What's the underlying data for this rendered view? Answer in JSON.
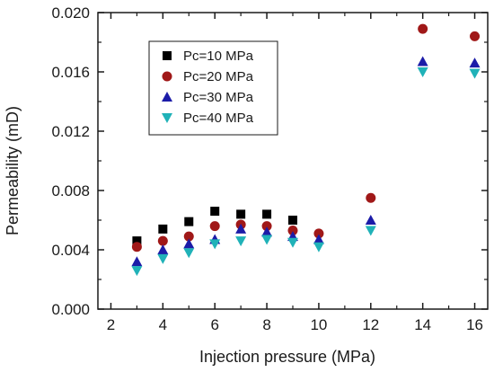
{
  "chart_data": {
    "type": "scatter",
    "title": "",
    "xlabel": "Injection pressure (MPa)",
    "ylabel": "Permeability (mD)",
    "xlim": [
      1.5,
      16.5
    ],
    "ylim": [
      0.0,
      0.02
    ],
    "x_ticks": [
      2,
      4,
      6,
      8,
      10,
      12,
      14,
      16
    ],
    "x_tick_labels": [
      "2",
      "4",
      "6",
      "8",
      "10",
      "12",
      "14",
      "16"
    ],
    "y_ticks": [
      0.0,
      0.004,
      0.008,
      0.012,
      0.016,
      0.02
    ],
    "y_tick_labels": [
      "0.000",
      "0.004",
      "0.008",
      "0.012",
      "0.016",
      "0.020"
    ],
    "grid": false,
    "legend_position": "top-left",
    "series": [
      {
        "name": "Pc=10 MPa",
        "marker": "square",
        "color": "#000000",
        "x": [
          3,
          4,
          5,
          6,
          7,
          8,
          9
        ],
        "y": [
          0.0046,
          0.0054,
          0.0059,
          0.0066,
          0.0064,
          0.0064,
          0.006
        ]
      },
      {
        "name": "Pc=20 MPa",
        "marker": "circle",
        "color": "#a01818",
        "x": [
          3,
          4,
          5,
          6,
          7,
          8,
          9,
          10,
          12,
          14,
          16
        ],
        "y": [
          0.0042,
          0.0046,
          0.0049,
          0.0056,
          0.0057,
          0.0056,
          0.0053,
          0.0051,
          0.0075,
          0.0189,
          0.0184
        ]
      },
      {
        "name": "Pc=30 MPa",
        "marker": "triangle-up",
        "color": "#1c1ca8",
        "x": [
          3,
          4,
          5,
          6,
          7,
          8,
          9,
          10,
          12,
          14,
          16
        ],
        "y": [
          0.0032,
          0.004,
          0.0044,
          0.0047,
          0.0054,
          0.0052,
          0.0049,
          0.0047,
          0.006,
          0.0167,
          0.0166
        ]
      },
      {
        "name": "Pc=40 MPa",
        "marker": "triangle-down",
        "color": "#20b2b8",
        "x": [
          3,
          4,
          5,
          6,
          7,
          8,
          9,
          10,
          12,
          14,
          16
        ],
        "y": [
          0.0026,
          0.0034,
          0.0038,
          0.0044,
          0.0046,
          0.0047,
          0.0045,
          0.0042,
          0.0053,
          0.016,
          0.0159
        ]
      }
    ]
  }
}
